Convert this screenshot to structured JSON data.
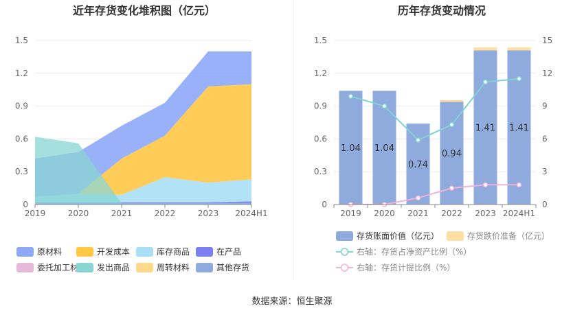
{
  "left_chart": {
    "title": "近年存货变化堆积图（亿元）",
    "legend": [
      {
        "label": "原材料",
        "color": "#8da8f7"
      },
      {
        "label": "开发成本",
        "color": "#ffc845"
      },
      {
        "label": "库存商品",
        "color": "#a9dff5"
      },
      {
        "label": "在产品",
        "color": "#7b7ff0"
      },
      {
        "label": "委托加工材料",
        "color": "#e6b8d9"
      },
      {
        "label": "发出商品",
        "color": "#88d6d3"
      },
      {
        "label": "周转材料",
        "color": "#ffd98a"
      },
      {
        "label": "其他存货",
        "color": "#8faadc"
      }
    ]
  },
  "right_chart": {
    "title": "历年存货变动情况",
    "legend": {
      "bar1": "存货账面价值（亿元）",
      "bar2": "存货跌价准备（亿元）",
      "line1": "右轴：存货占净资产比例（%）",
      "line2": "右轴：存货计提比例（%）"
    }
  },
  "source": "数据来源：恒生聚源",
  "chart_data": [
    {
      "type": "area",
      "stacked": true,
      "title": "近年存货变化堆积图（亿元）",
      "categories": [
        "2019",
        "2020",
        "2021",
        "2022",
        "2023",
        "2024H1"
      ],
      "ylim": [
        0,
        1.5
      ],
      "yticks": [
        "0",
        "0.3",
        "0.6",
        "0.9",
        "1.2",
        "1.5"
      ],
      "series": [
        {
          "name": "原材料",
          "color": "#8da8f7",
          "values": [
            0.35,
            0.38,
            0.3,
            0.3,
            0.32,
            0.3
          ]
        },
        {
          "name": "开发成本",
          "color": "#ffc845",
          "values": [
            0,
            0,
            0.33,
            0.38,
            0.88,
            0.87
          ]
        },
        {
          "name": "库存商品",
          "color": "#a9dff5",
          "values": [
            0.05,
            0.08,
            0.07,
            0.23,
            0.18,
            0.2
          ]
        },
        {
          "name": "在产品",
          "color": "#7b7ff0",
          "values": [
            0.02,
            0.02,
            0.02,
            0.02,
            0.02,
            0.03
          ]
        },
        {
          "name": "委托加工材料",
          "color": "#e6b8d9",
          "values": [
            0,
            0,
            0,
            0,
            0,
            0
          ]
        },
        {
          "name": "发出商品",
          "color": "#88d6d3",
          "values": [
            0.62,
            0.56,
            0.01,
            0.01,
            0.01,
            0.01
          ]
        },
        {
          "name": "周转材料",
          "color": "#ffd98a",
          "values": [
            0,
            0,
            0,
            0,
            0,
            0
          ]
        },
        {
          "name": "其他存货",
          "color": "#8faadc",
          "values": [
            0,
            0,
            0,
            0,
            0,
            0
          ]
        }
      ]
    },
    {
      "type": "bar",
      "title": "历年存货变动情况",
      "categories": [
        "2019",
        "2020",
        "2021",
        "2022",
        "2023",
        "2024H1"
      ],
      "ylim": [
        0,
        1.5
      ],
      "yticks": [
        "0",
        "0.3",
        "0.6",
        "0.9",
        "1.2",
        "1.5"
      ],
      "y2lim": [
        0,
        15
      ],
      "y2ticks": [
        "0",
        "3",
        "6",
        "9",
        "12",
        "15"
      ],
      "series": [
        {
          "name": "存货账面价值（亿元）",
          "color": "#8faadc",
          "axis": "left",
          "values": [
            1.04,
            1.04,
            0.74,
            0.94,
            1.41,
            1.41
          ],
          "labels": [
            "1.04",
            "1.04",
            "0.74",
            "0.94",
            "1.41",
            "1.41"
          ]
        },
        {
          "name": "存货跌价准备（亿元）",
          "color": "#ffe0a3",
          "axis": "left",
          "values": [
            0,
            0,
            0,
            0.015,
            0.027,
            0.027
          ]
        },
        {
          "name": "右轴：存货占净资产比例（%）",
          "color": "#7fd3d3",
          "axis": "right",
          "type": "line",
          "values": [
            9.9,
            9.0,
            5.9,
            7.3,
            11.2,
            11.5
          ]
        },
        {
          "name": "右轴：存货计提比例（%）",
          "color": "#f0b3d8",
          "axis": "right",
          "type": "line",
          "values": [
            0,
            0,
            0.6,
            1.5,
            1.8,
            1.8
          ]
        }
      ]
    }
  ]
}
